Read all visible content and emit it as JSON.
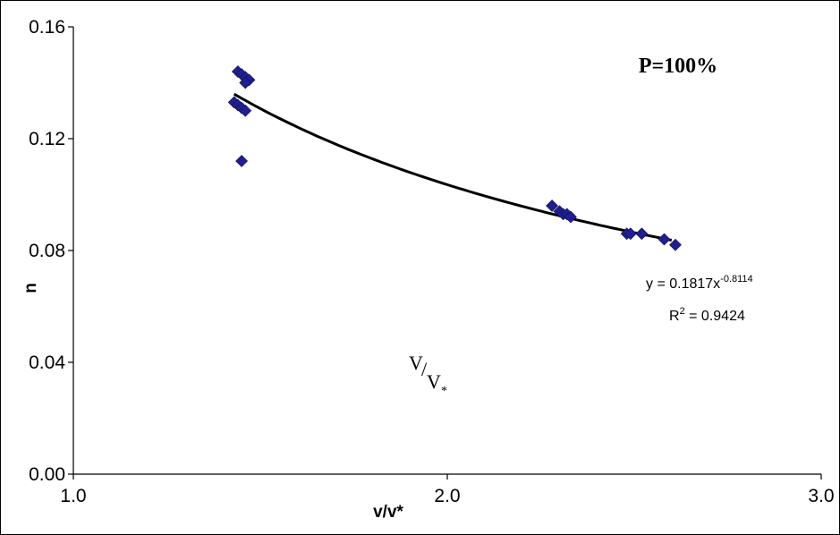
{
  "chart_data": {
    "type": "scatter",
    "xlim": [
      1.0,
      3.0
    ],
    "ylim": [
      0.0,
      0.16
    ],
    "x_ticks": [
      1.0,
      2.0,
      3.0
    ],
    "x_tick_labels": [
      "1.0",
      "2.0",
      "3.0"
    ],
    "y_ticks": [
      0.0,
      0.04,
      0.08,
      0.12,
      0.16
    ],
    "y_tick_labels": [
      "0.00",
      "0.04",
      "0.08",
      "0.12",
      "0.16"
    ],
    "xlabel": "v/v*",
    "ylabel": "n",
    "grid": false,
    "panel_label": "P=100%",
    "annotation": {
      "V": "V",
      "slash": "/",
      "Vstar": "V",
      "star": "*"
    },
    "series": [
      {
        "kind": "points",
        "marker": "diamond",
        "color": "#1F1F8F",
        "points": [
          [
            1.44,
            0.144
          ],
          [
            1.45,
            0.143
          ],
          [
            1.46,
            0.142
          ],
          [
            1.47,
            0.141
          ],
          [
            1.46,
            0.14
          ],
          [
            1.43,
            0.133
          ],
          [
            1.44,
            0.132
          ],
          [
            1.45,
            0.131
          ],
          [
            1.46,
            0.13
          ],
          [
            1.45,
            0.112
          ],
          [
            2.28,
            0.096
          ],
          [
            2.3,
            0.094
          ],
          [
            2.31,
            0.093
          ],
          [
            2.32,
            0.093
          ],
          [
            2.33,
            0.092
          ],
          [
            2.48,
            0.086
          ],
          [
            2.49,
            0.086
          ],
          [
            2.52,
            0.086
          ],
          [
            2.58,
            0.084
          ],
          [
            2.61,
            0.082
          ]
        ]
      },
      {
        "kind": "power-trendline",
        "color": "#000000",
        "coefficient": 0.1817,
        "exponent": -0.8114,
        "x_range": [
          1.43,
          2.6
        ]
      }
    ],
    "equation": {
      "prefix": "y = 0.1817x",
      "exponent": "-0.8114",
      "r2_prefix": "R",
      "r2_sup": "2",
      "r2_value": " = 0.9424"
    }
  }
}
